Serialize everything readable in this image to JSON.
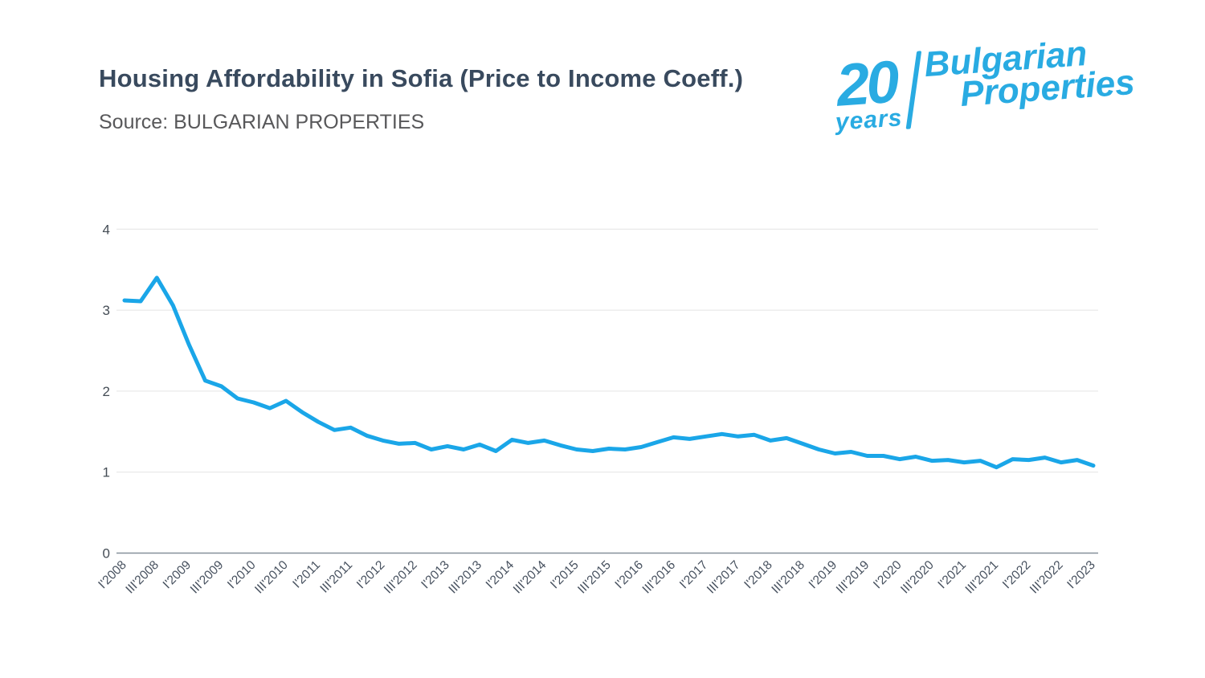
{
  "header": {
    "title": "Housing Affordability in Sofia (Price to Income Coeff.)",
    "source": "Source: BULGARIAN PROPERTIES"
  },
  "logo": {
    "years_number": "20",
    "years_word": "years",
    "brand_line1": "Bulgarian",
    "brand_line2": "Properties",
    "color": "#29abe2"
  },
  "chart_data": {
    "type": "line",
    "title": "Housing Affordability in Sofia (Price to Income Coeff.)",
    "subtitle": "Source: BULGARIAN PROPERTIES",
    "xlabel": "",
    "ylabel": "",
    "ylim": [
      0,
      4
    ],
    "yticks": [
      4,
      3,
      2,
      1,
      0
    ],
    "grid": "horizontal",
    "legend": "none",
    "line_color": "#1aa6e8",
    "grid_color": "#e4e4e4",
    "axis_color": "#85909a",
    "tick_text_color": "#46505e",
    "x": [
      "I'2008",
      "II'2008",
      "III'2008",
      "IV'2008",
      "I'2009",
      "II'2009",
      "III'2009",
      "IV'2009",
      "I'2010",
      "II'2010",
      "III'2010",
      "IV'2010",
      "I'2011",
      "II'2011",
      "III'2011",
      "IV'2011",
      "I'2012",
      "II'2012",
      "III'2012",
      "IV'2012",
      "I'2013",
      "II'2013",
      "III'2013",
      "IV'2013",
      "I'2014",
      "II'2014",
      "III'2014",
      "IV'2014",
      "I'2015",
      "II'2015",
      "III'2015",
      "IV'2015",
      "I'2016",
      "II'2016",
      "III'2016",
      "IV'2016",
      "I'2017",
      "II'2017",
      "III'2017",
      "IV'2017",
      "I'2018",
      "II'2018",
      "III'2018",
      "IV'2018",
      "I'2019",
      "II'2019",
      "III'2019",
      "IV'2019",
      "I'2020",
      "II'2020",
      "III'2020",
      "IV'2020",
      "I'2021",
      "II'2021",
      "III'2021",
      "IV'2021",
      "I'2022",
      "II'2022",
      "III'2022",
      "IV'2022",
      "I'2023"
    ],
    "values": [
      3.12,
      3.11,
      3.4,
      3.06,
      2.57,
      2.13,
      2.06,
      1.91,
      1.86,
      1.79,
      1.88,
      1.74,
      1.62,
      1.52,
      1.55,
      1.45,
      1.39,
      1.35,
      1.36,
      1.28,
      1.32,
      1.28,
      1.34,
      1.26,
      1.4,
      1.36,
      1.39,
      1.33,
      1.28,
      1.26,
      1.29,
      1.28,
      1.31,
      1.37,
      1.43,
      1.41,
      1.44,
      1.47,
      1.44,
      1.46,
      1.39,
      1.42,
      1.35,
      1.28,
      1.23,
      1.25,
      1.2,
      1.2,
      1.16,
      1.19,
      1.14,
      1.15,
      1.12,
      1.14,
      1.06,
      1.16,
      1.15,
      1.18,
      1.12,
      1.15,
      1.08
    ],
    "xticks": [
      "I'2008",
      "III'2008",
      "I'2009",
      "III'2009",
      "I'2010",
      "III'2010",
      "I'2011",
      "III'2011",
      "I'2012",
      "III'2012",
      "I'2013",
      "III'2013",
      "I'2014",
      "III'2014",
      "I'2015",
      "III'2015",
      "I'2016",
      "III'2016",
      "I'2017",
      "III'2017",
      "I'2018",
      "III'2018",
      "I'2019",
      "III'2019",
      "I'2020",
      "III'2020",
      "I'2021",
      "III'2021",
      "I'2022",
      "III'2022",
      "I'2023"
    ]
  }
}
